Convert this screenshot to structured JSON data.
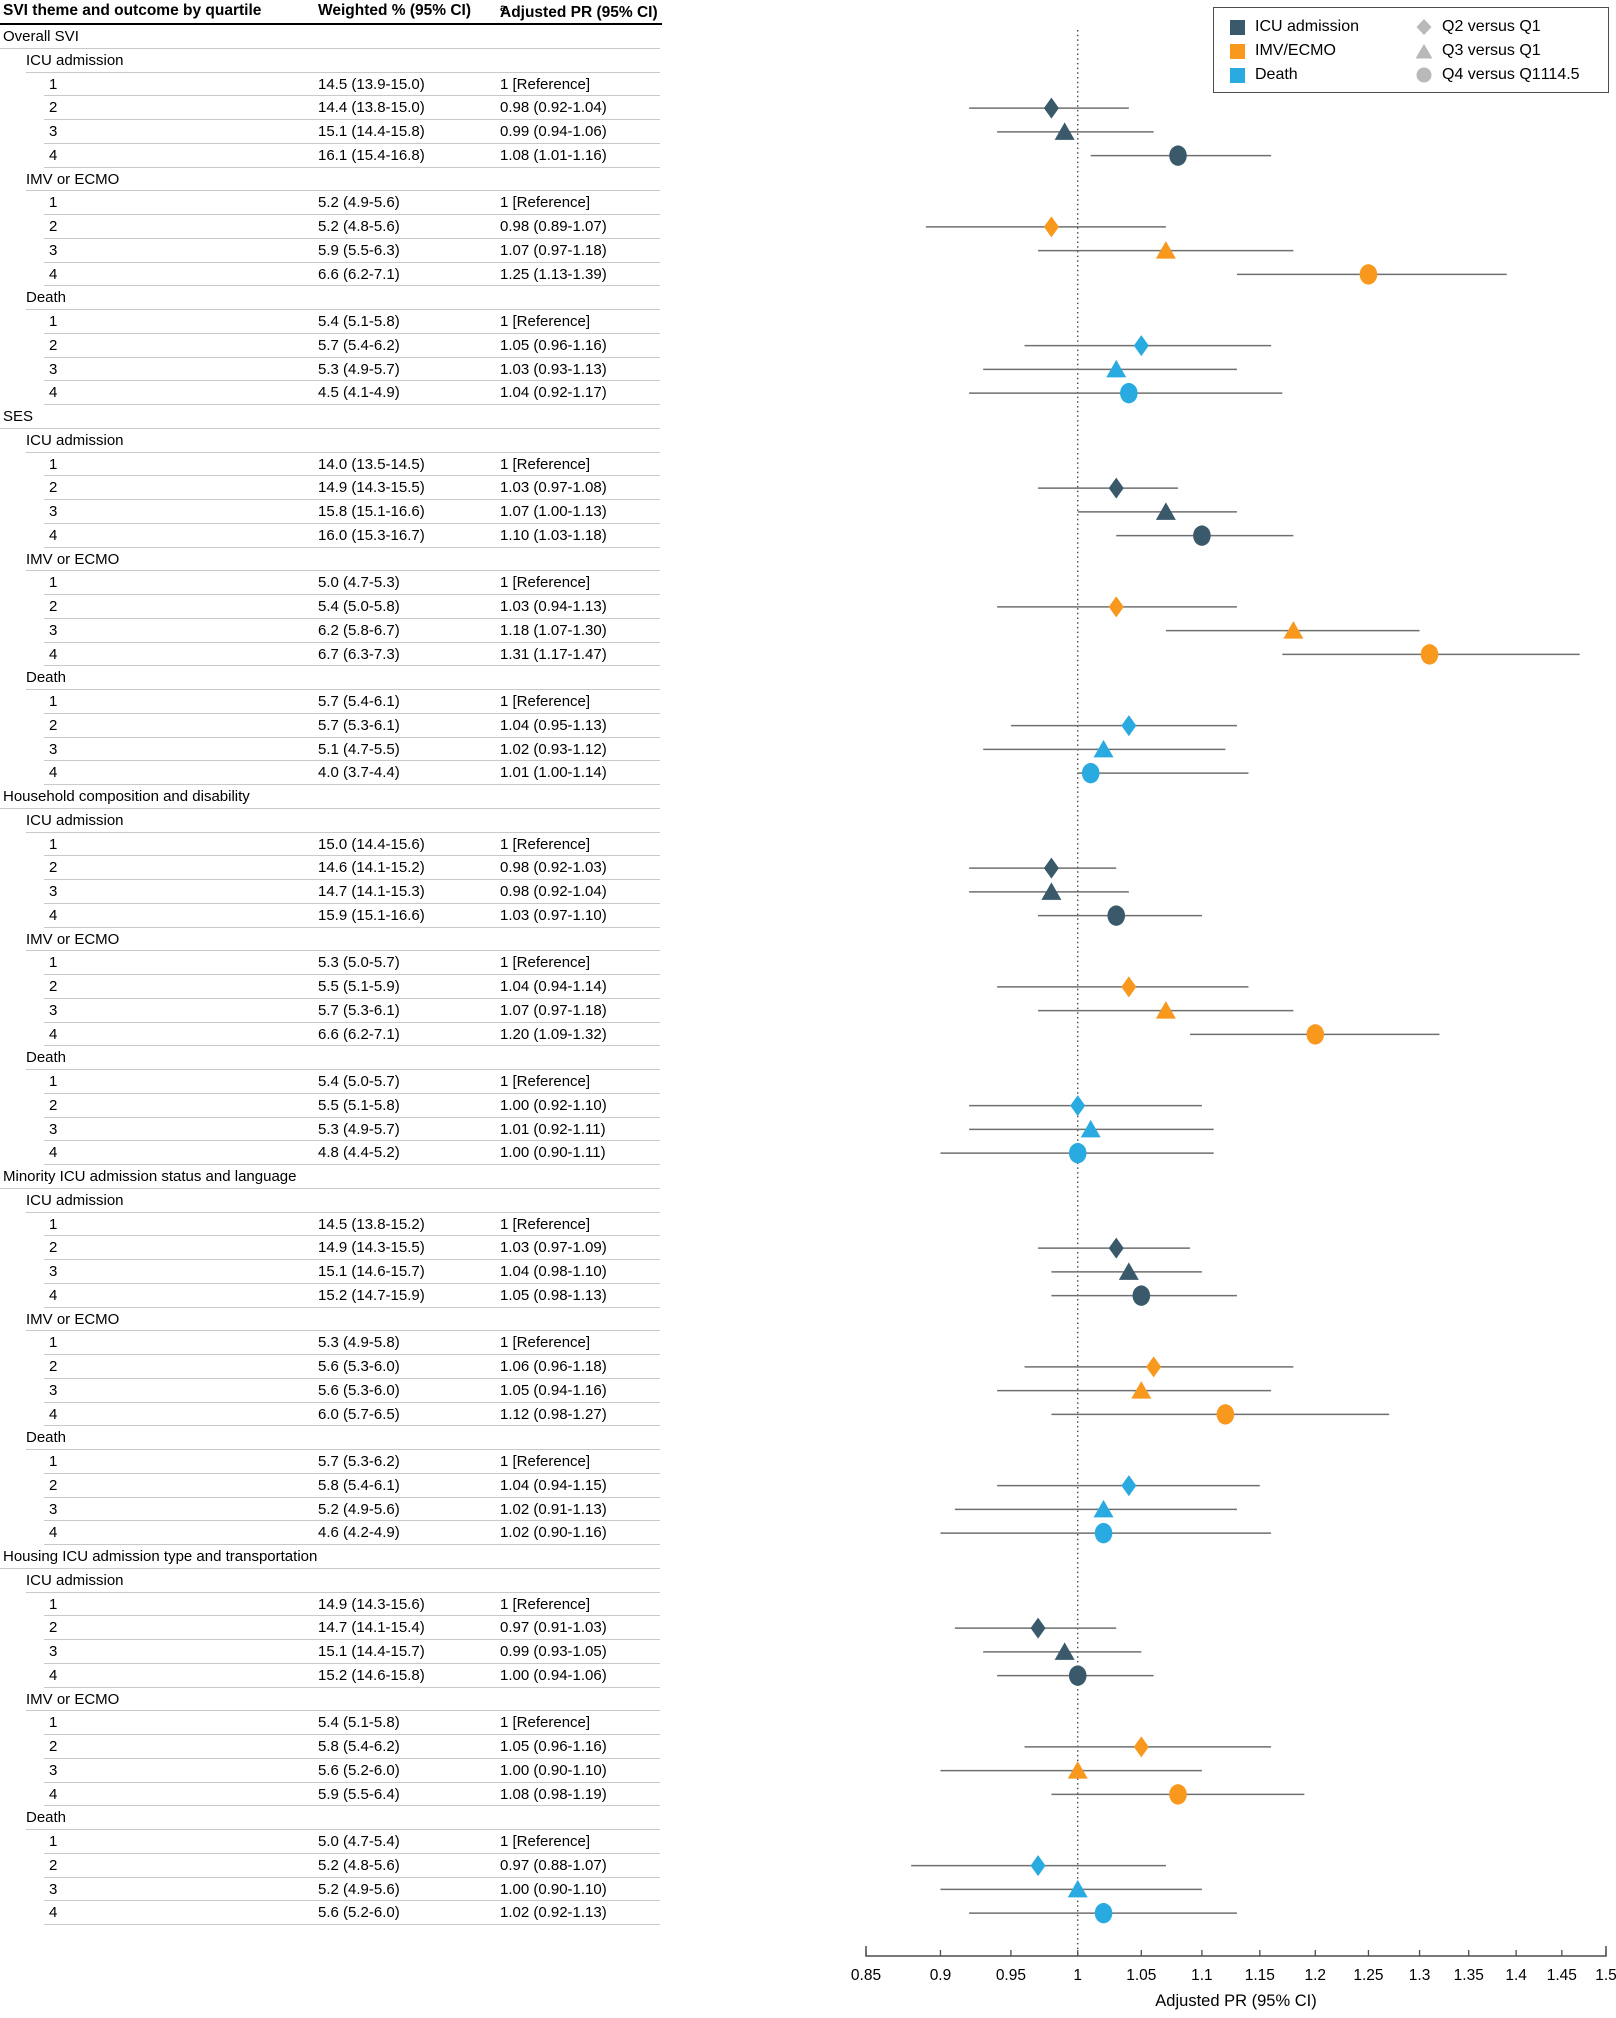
{
  "table": {
    "headers": [
      "SVI theme and outcome by quartile",
      "Weighted % (95% CI)",
      "Adjusted PR (95% CI)"
    ],
    "header_superscript": "a"
  },
  "legend": {
    "marker_color": "#b9b9b9",
    "outcomes": [
      {
        "label": "ICU admission",
        "color": "#3a5a6b"
      },
      {
        "label": "IMV/ECMO",
        "color": "#f8981d"
      },
      {
        "label": "Death",
        "color": "#29abe2"
      }
    ],
    "comparisons": [
      {
        "label": "Q2 versus Q1",
        "marker": "diamond"
      },
      {
        "label": "Q3 versus Q1",
        "marker": "triangle"
      },
      {
        "label": "Q4 versus Q1",
        "marker": "circle",
        "stray_text": "114.5"
      }
    ]
  },
  "chart_data": {
    "type": "scatter",
    "subtype": "forest-plot",
    "x_axis": {
      "label": "Adjusted PR (95% CI)",
      "scale": "log",
      "range": [
        0.85,
        1.5
      ],
      "tick_labels": [
        "0.85",
        "0.9",
        "0.95",
        "1",
        "1.05",
        "1.1",
        "1.15",
        "1.2",
        "1.25",
        "1.3",
        "1.35",
        "1.4",
        "1.45",
        "1.5"
      ],
      "reference_line": 1
    },
    "colors": {
      "icu": "#3a5a6b",
      "imv": "#f8981d",
      "death": "#29abe2"
    },
    "marker_by_quartile": {
      "2": "diamond",
      "3": "triangle",
      "4": "circle"
    },
    "sections": [
      {
        "label": "Overall SVI",
        "outcomes": [
          {
            "label": "ICU admission",
            "outcome": "icu",
            "rows": [
              {
                "q": "1",
                "weighted": "14.5 (13.9-15.0)",
                "pr": "1 [Reference]"
              },
              {
                "q": "2",
                "weighted": "14.4 (13.8-15.0)",
                "pr": "0.98 (0.92-1.04)",
                "est": 0.98,
                "lo": 0.92,
                "hi": 1.04
              },
              {
                "q": "3",
                "weighted": "15.1 (14.4-15.8)",
                "pr": "0.99 (0.94-1.06)",
                "est": 0.99,
                "lo": 0.94,
                "hi": 1.06
              },
              {
                "q": "4",
                "weighted": "16.1 (15.4-16.8)",
                "pr": "1.08 (1.01-1.16)",
                "est": 1.08,
                "lo": 1.01,
                "hi": 1.16
              }
            ]
          },
          {
            "label": "IMV or ECMO",
            "outcome": "imv",
            "rows": [
              {
                "q": "1",
                "weighted": "5.2 (4.9-5.6)",
                "pr": "1 [Reference]"
              },
              {
                "q": "2",
                "weighted": "5.2 (4.8-5.6)",
                "pr": "0.98 (0.89-1.07)",
                "est": 0.98,
                "lo": 0.89,
                "hi": 1.07
              },
              {
                "q": "3",
                "weighted": "5.9 (5.5-6.3)",
                "pr": "1.07 (0.97-1.18)",
                "est": 1.07,
                "lo": 0.97,
                "hi": 1.18
              },
              {
                "q": "4",
                "weighted": "6.6 (6.2-7.1)",
                "pr": "1.25 (1.13-1.39)",
                "est": 1.25,
                "lo": 1.13,
                "hi": 1.39
              }
            ]
          },
          {
            "label": "Death",
            "outcome": "death",
            "rows": [
              {
                "q": "1",
                "weighted": "5.4 (5.1-5.8)",
                "pr": "1 [Reference]"
              },
              {
                "q": "2",
                "weighted": "5.7 (5.4-6.2)",
                "pr": "1.05 (0.96-1.16)",
                "est": 1.05,
                "lo": 0.96,
                "hi": 1.16
              },
              {
                "q": "3",
                "weighted": "5.3 (4.9-5.7)",
                "pr": "1.03 (0.93-1.13)",
                "est": 1.03,
                "lo": 0.93,
                "hi": 1.13
              },
              {
                "q": "4",
                "weighted": "4.5 (4.1-4.9)",
                "pr": "1.04 (0.92-1.17)",
                "est": 1.04,
                "lo": 0.92,
                "hi": 1.17
              }
            ]
          }
        ]
      },
      {
        "label": "SES",
        "outcomes": [
          {
            "label": "ICU admission",
            "outcome": "icu",
            "rows": [
              {
                "q": "1",
                "weighted": "14.0 (13.5-14.5)",
                "pr": "1 [Reference]"
              },
              {
                "q": "2",
                "weighted": "14.9 (14.3-15.5)",
                "pr": "1.03 (0.97-1.08)",
                "est": 1.03,
                "lo": 0.97,
                "hi": 1.08
              },
              {
                "q": "3",
                "weighted": "15.8 (15.1-16.6)",
                "pr": "1.07 (1.00-1.13)",
                "est": 1.07,
                "lo": 1.0,
                "hi": 1.13
              },
              {
                "q": "4",
                "weighted": "16.0 (15.3-16.7)",
                "pr": "1.10 (1.03-1.18)",
                "est": 1.1,
                "lo": 1.03,
                "hi": 1.18
              }
            ]
          },
          {
            "label": "IMV or ECMO",
            "outcome": "imv",
            "rows": [
              {
                "q": "1",
                "weighted": "5.0 (4.7-5.3)",
                "pr": "1 [Reference]"
              },
              {
                "q": "2",
                "weighted": "5.4 (5.0-5.8)",
                "pr": "1.03 (0.94-1.13)",
                "est": 1.03,
                "lo": 0.94,
                "hi": 1.13
              },
              {
                "q": "3",
                "weighted": "6.2 (5.8-6.7)",
                "pr": "1.18 (1.07-1.30)",
                "est": 1.18,
                "lo": 1.07,
                "hi": 1.3
              },
              {
                "q": "4",
                "weighted": "6.7 (6.3-7.3)",
                "pr": "1.31 (1.17-1.47)",
                "est": 1.31,
                "lo": 1.17,
                "hi": 1.47
              }
            ]
          },
          {
            "label": "Death",
            "outcome": "death",
            "rows": [
              {
                "q": "1",
                "weighted": "5.7 (5.4-6.1)",
                "pr": "1 [Reference]"
              },
              {
                "q": "2",
                "weighted": "5.7 (5.3-6.1)",
                "pr": "1.04 (0.95-1.13)",
                "est": 1.04,
                "lo": 0.95,
                "hi": 1.13
              },
              {
                "q": "3",
                "weighted": "5.1 (4.7-5.5)",
                "pr": "1.02 (0.93-1.12)",
                "est": 1.02,
                "lo": 0.93,
                "hi": 1.12
              },
              {
                "q": "4",
                "weighted": "4.0 (3.7-4.4)",
                "pr": "1.01 (1.00-1.14)",
                "est": 1.01,
                "lo": 1.0,
                "hi": 1.14
              }
            ]
          }
        ]
      },
      {
        "label": "Household composition and disability",
        "outcomes": [
          {
            "label": "ICU admission",
            "outcome": "icu",
            "rows": [
              {
                "q": "1",
                "weighted": "15.0 (14.4-15.6)",
                "pr": "1 [Reference]"
              },
              {
                "q": "2",
                "weighted": "14.6 (14.1-15.2)",
                "pr": "0.98 (0.92-1.03)",
                "est": 0.98,
                "lo": 0.92,
                "hi": 1.03
              },
              {
                "q": "3",
                "weighted": "14.7 (14.1-15.3)",
                "pr": "0.98 (0.92-1.04)",
                "est": 0.98,
                "lo": 0.92,
                "hi": 1.04
              },
              {
                "q": "4",
                "weighted": "15.9 (15.1-16.6)",
                "pr": "1.03 (0.97-1.10)",
                "est": 1.03,
                "lo": 0.97,
                "hi": 1.1
              }
            ]
          },
          {
            "label": "IMV or ECMO",
            "outcome": "imv",
            "rows": [
              {
                "q": "1",
                "weighted": "5.3 (5.0-5.7)",
                "pr": "1 [Reference]"
              },
              {
                "q": "2",
                "weighted": "5.5 (5.1-5.9)",
                "pr": "1.04 (0.94-1.14)",
                "est": 1.04,
                "lo": 0.94,
                "hi": 1.14
              },
              {
                "q": "3",
                "weighted": "5.7 (5.3-6.1)",
                "pr": "1.07 (0.97-1.18)",
                "est": 1.07,
                "lo": 0.97,
                "hi": 1.18
              },
              {
                "q": "4",
                "weighted": "6.6 (6.2-7.1)",
                "pr": "1.20 (1.09-1.32)",
                "est": 1.2,
                "lo": 1.09,
                "hi": 1.32
              }
            ]
          },
          {
            "label": "Death",
            "outcome": "death",
            "rows": [
              {
                "q": "1",
                "weighted": "5.4 (5.0-5.7)",
                "pr": "1 [Reference]"
              },
              {
                "q": "2",
                "weighted": "5.5 (5.1-5.8)",
                "pr": "1.00 (0.92-1.10)",
                "est": 1.0,
                "lo": 0.92,
                "hi": 1.1
              },
              {
                "q": "3",
                "weighted": "5.3 (4.9-5.7)",
                "pr": "1.01 (0.92-1.11)",
                "est": 1.01,
                "lo": 0.92,
                "hi": 1.11
              },
              {
                "q": "4",
                "weighted": "4.8 (4.4-5.2)",
                "pr": "1.00 (0.90-1.11)",
                "est": 1.0,
                "lo": 0.9,
                "hi": 1.11
              }
            ]
          }
        ]
      },
      {
        "label": "Minority ICU admission status and language",
        "outcomes": [
          {
            "label": "ICU admission",
            "outcome": "icu",
            "rows": [
              {
                "q": "1",
                "weighted": "14.5 (13.8-15.2)",
                "pr": "1 [Reference]"
              },
              {
                "q": "2",
                "weighted": "14.9 (14.3-15.5)",
                "pr": "1.03 (0.97-1.09)",
                "est": 1.03,
                "lo": 0.97,
                "hi": 1.09
              },
              {
                "q": "3",
                "weighted": "15.1 (14.6-15.7)",
                "pr": "1.04 (0.98-1.10)",
                "est": 1.04,
                "lo": 0.98,
                "hi": 1.1
              },
              {
                "q": "4",
                "weighted": "15.2 (14.7-15.9)",
                "pr": "1.05 (0.98-1.13)",
                "est": 1.05,
                "lo": 0.98,
                "hi": 1.13
              }
            ]
          },
          {
            "label": "IMV or ECMO",
            "outcome": "imv",
            "rows": [
              {
                "q": "1",
                "weighted": "5.3 (4.9-5.8)",
                "pr": "1 [Reference]"
              },
              {
                "q": "2",
                "weighted": "5.6 (5.3-6.0)",
                "pr": "1.06 (0.96-1.18)",
                "est": 1.06,
                "lo": 0.96,
                "hi": 1.18
              },
              {
                "q": "3",
                "weighted": "5.6 (5.3-6.0)",
                "pr": "1.05 (0.94-1.16)",
                "est": 1.05,
                "lo": 0.94,
                "hi": 1.16
              },
              {
                "q": "4",
                "weighted": "6.0 (5.7-6.5)",
                "pr": "1.12 (0.98-1.27)",
                "est": 1.12,
                "lo": 0.98,
                "hi": 1.27
              }
            ]
          },
          {
            "label": "Death",
            "outcome": "death",
            "rows": [
              {
                "q": "1",
                "weighted": "5.7 (5.3-6.2)",
                "pr": "1 [Reference]"
              },
              {
                "q": "2",
                "weighted": "5.8 (5.4-6.1)",
                "pr": "1.04 (0.94-1.15)",
                "est": 1.04,
                "lo": 0.94,
                "hi": 1.15
              },
              {
                "q": "3",
                "weighted": "5.2 (4.9-5.6)",
                "pr": "1.02 (0.91-1.13)",
                "est": 1.02,
                "lo": 0.91,
                "hi": 1.13
              },
              {
                "q": "4",
                "weighted": "4.6 (4.2-4.9)",
                "pr": "1.02 (0.90-1.16)",
                "est": 1.02,
                "lo": 0.9,
                "hi": 1.16
              }
            ]
          }
        ]
      },
      {
        "label": "Housing ICU admission type and transportation",
        "outcomes": [
          {
            "label": "ICU admission",
            "outcome": "icu",
            "rows": [
              {
                "q": "1",
                "weighted": "14.9 (14.3-15.6)",
                "pr": "1 [Reference]"
              },
              {
                "q": "2",
                "weighted": "14.7 (14.1-15.4)",
                "pr": "0.97 (0.91-1.03)",
                "est": 0.97,
                "lo": 0.91,
                "hi": 1.03
              },
              {
                "q": "3",
                "weighted": "15.1 (14.4-15.7)",
                "pr": "0.99 (0.93-1.05)",
                "est": 0.99,
                "lo": 0.93,
                "hi": 1.05
              },
              {
                "q": "4",
                "weighted": "15.2 (14.6-15.8)",
                "pr": "1.00 (0.94-1.06)",
                "est": 1.0,
                "lo": 0.94,
                "hi": 1.06
              }
            ]
          },
          {
            "label": "IMV or ECMO",
            "outcome": "imv",
            "rows": [
              {
                "q": "1",
                "weighted": "5.4 (5.1-5.8)",
                "pr": "1 [Reference]"
              },
              {
                "q": "2",
                "weighted": "5.8 (5.4-6.2)",
                "pr": "1.05 (0.96-1.16)",
                "est": 1.05,
                "lo": 0.96,
                "hi": 1.16
              },
              {
                "q": "3",
                "weighted": "5.6 (5.2-6.0)",
                "pr": "1.00 (0.90-1.10)",
                "est": 1.0,
                "lo": 0.9,
                "hi": 1.1
              },
              {
                "q": "4",
                "weighted": "5.9 (5.5-6.4)",
                "pr": "1.08 (0.98-1.19)",
                "est": 1.08,
                "lo": 0.98,
                "hi": 1.19
              }
            ]
          },
          {
            "label": "Death",
            "outcome": "death",
            "rows": [
              {
                "q": "1",
                "weighted": "5.0 (4.7-5.4)",
                "pr": "1 [Reference]"
              },
              {
                "q": "2",
                "weighted": "5.2 (4.8-5.6)",
                "pr": "0.97 (0.88-1.07)",
                "est": 0.97,
                "lo": 0.88,
                "hi": 1.07
              },
              {
                "q": "3",
                "weighted": "5.2 (4.9-5.6)",
                "pr": "1.00 (0.90-1.10)",
                "est": 1.0,
                "lo": 0.9,
                "hi": 1.1
              },
              {
                "q": "4",
                "weighted": "5.6 (5.2-6.0)",
                "pr": "1.02 (0.92-1.13)",
                "est": 1.02,
                "lo": 0.92,
                "hi": 1.13
              }
            ]
          }
        ]
      }
    ]
  }
}
